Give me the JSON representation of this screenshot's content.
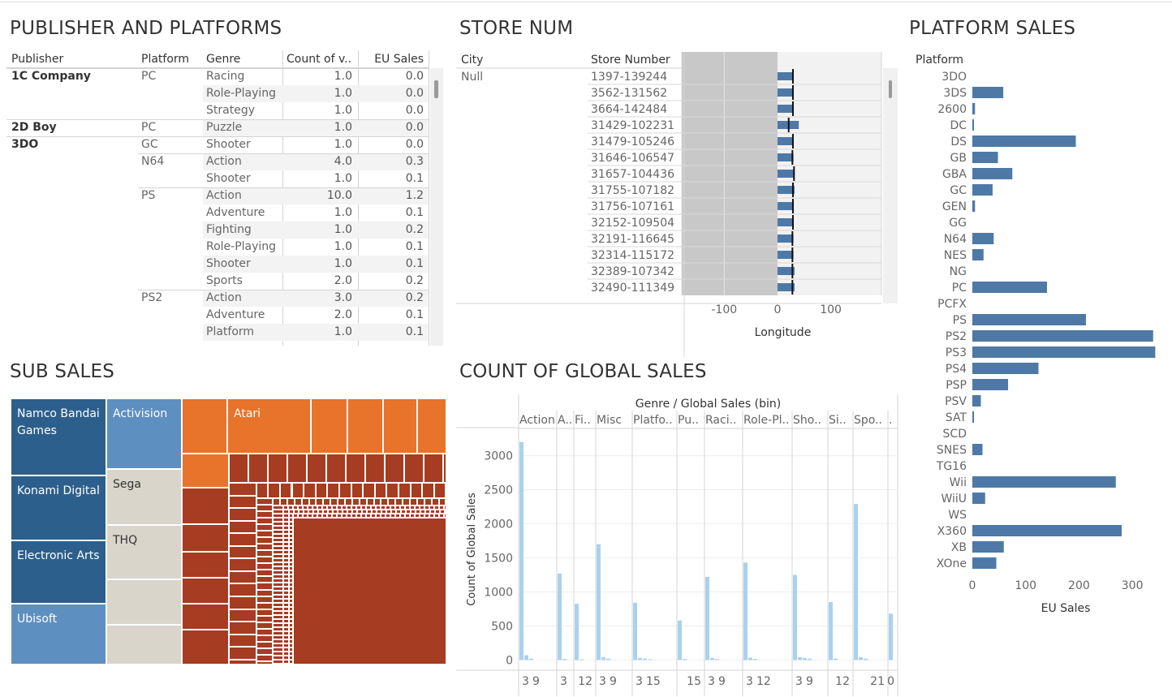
{
  "panels": {
    "publisher": {
      "title": "PUBLISHER AND PLATFORMS",
      "headers": [
        "Publisher",
        "Platform",
        "Genre",
        "Count of v..",
        "EU Sales"
      ],
      "rows": [
        {
          "pub": "1C Company",
          "plat": "PC",
          "genre": "Racing",
          "count": "1.0",
          "eu": "0.0"
        },
        {
          "pub": "",
          "plat": "",
          "genre": "Role-Playing",
          "count": "1.0",
          "eu": "0.0"
        },
        {
          "pub": "",
          "plat": "",
          "genre": "Strategy",
          "count": "1.0",
          "eu": "0.0"
        },
        {
          "pub": "2D Boy",
          "plat": "PC",
          "genre": "Puzzle",
          "count": "1.0",
          "eu": "0.0"
        },
        {
          "pub": "3DO",
          "plat": "GC",
          "genre": "Shooter",
          "count": "1.0",
          "eu": "0.0"
        },
        {
          "pub": "",
          "plat": "N64",
          "genre": "Action",
          "count": "4.0",
          "eu": "0.3"
        },
        {
          "pub": "",
          "plat": "",
          "genre": "Shooter",
          "count": "1.0",
          "eu": "0.1"
        },
        {
          "pub": "",
          "plat": "PS",
          "genre": "Action",
          "count": "10.0",
          "eu": "1.2"
        },
        {
          "pub": "",
          "plat": "",
          "genre": "Adventure",
          "count": "1.0",
          "eu": "0.1"
        },
        {
          "pub": "",
          "plat": "",
          "genre": "Fighting",
          "count": "1.0",
          "eu": "0.2"
        },
        {
          "pub": "",
          "plat": "",
          "genre": "Role-Playing",
          "count": "1.0",
          "eu": "0.1"
        },
        {
          "pub": "",
          "plat": "",
          "genre": "Shooter",
          "count": "1.0",
          "eu": "0.1"
        },
        {
          "pub": "",
          "plat": "",
          "genre": "Sports",
          "count": "2.0",
          "eu": "0.2"
        },
        {
          "pub": "",
          "plat": "PS2",
          "genre": "Action",
          "count": "3.0",
          "eu": "0.2"
        },
        {
          "pub": "",
          "plat": "",
          "genre": "Adventure",
          "count": "2.0",
          "eu": "0.1"
        },
        {
          "pub": "",
          "plat": "",
          "genre": "Platform",
          "count": "1.0",
          "eu": "0.1"
        }
      ]
    },
    "store": {
      "title": "STORE NUM"
    },
    "platform": {
      "title": "PLATFORM SALES"
    },
    "sub": {
      "title": "SUB SALES"
    },
    "global": {
      "title": "COUNT OF GLOBAL SALES"
    }
  },
  "chart_data": [
    {
      "type": "bar",
      "title": "STORE NUM",
      "row_headers": [
        "City",
        "Store Number"
      ],
      "city": "Null",
      "categories": [
        "1397-139244",
        "3562-131562",
        "3664-142484",
        "31429-102231",
        "31479-105246",
        "31646-106547",
        "31657-104436",
        "31755-107182",
        "31756-107161",
        "32152-109504",
        "32191-116645",
        "32314-115172",
        "32389-107342",
        "32490-111349"
      ],
      "values": [
        30,
        30,
        30,
        40,
        30,
        30,
        30,
        32,
        30,
        30,
        30,
        30,
        32,
        32
      ],
      "reference_values": [
        29,
        29,
        29,
        21,
        29,
        28,
        31,
        29,
        29,
        29,
        28,
        28,
        28,
        28
      ],
      "xlabel": "Longitude",
      "xticks": [
        -100,
        0,
        100
      ],
      "xlim": [
        -175,
        195
      ],
      "band": [
        -180,
        0
      ]
    },
    {
      "type": "bar",
      "title": "PLATFORM SALES",
      "row_header": "Platform",
      "categories": [
        "3DO",
        "3DS",
        "2600",
        "DC",
        "DS",
        "GB",
        "GBA",
        "GC",
        "GEN",
        "GG",
        "N64",
        "NES",
        "NG",
        "PC",
        "PCFX",
        "PS",
        "PS2",
        "PS3",
        "PS4",
        "PSP",
        "PSV",
        "SAT",
        "SCD",
        "SNES",
        "TG16",
        "Wii",
        "WiiU",
        "WS",
        "X360",
        "XB",
        "XOne"
      ],
      "values": [
        0,
        58,
        5,
        1.7,
        194,
        48,
        75,
        38,
        5,
        0,
        40,
        21,
        0,
        140,
        0,
        213,
        339,
        343,
        124,
        67,
        16,
        0.5,
        0,
        19,
        0,
        269,
        24,
        0,
        280,
        59,
        45
      ],
      "xlabel": "EU Sales",
      "xticks": [
        0,
        100,
        200,
        300
      ],
      "xlim": [
        0,
        350
      ],
      "color": "#4e79a7"
    },
    {
      "type": "treemap",
      "title": "SUB SALES",
      "labeled_blocks": [
        {
          "label": "Namco Bandai Games",
          "color": "#2c5f8c"
        },
        {
          "label": "Konami Digital",
          "color": "#2c5f8c"
        },
        {
          "label": "Electronic Arts",
          "color": "#2c5f8c"
        },
        {
          "label": "Ubisoft",
          "color": "#5e8fc1"
        },
        {
          "label": "Activision",
          "color": "#5e8fc1"
        },
        {
          "label": "Sega",
          "color": "#d9d5cb"
        },
        {
          "label": "THQ",
          "color": "#d9d5cb"
        },
        {
          "label": "Atari",
          "color": "#e8732a"
        }
      ],
      "colors": {
        "dark_blue": "#2c5f8c",
        "light_blue": "#5e8fc1",
        "beige": "#d9d5cb",
        "orange": "#e8732a",
        "red": "#a63c21"
      }
    },
    {
      "type": "bar",
      "title": "COUNT OF GLOBAL SALES",
      "header": "Genre  /  Global Sales (bin)",
      "genres": [
        "Action",
        "A..",
        "Fi..",
        "Misc",
        "Platfo..",
        "Pu..",
        "Raci..",
        "Role-Pl..",
        "Sho..",
        "Si..",
        "Spo..",
        "."
      ],
      "series_values": [
        [
          3200,
          70,
          20
        ],
        [
          1270,
          15
        ],
        [
          825,
          10
        ],
        [
          1700,
          40,
          20
        ],
        [
          840,
          30,
          20,
          10
        ],
        [
          580,
          15
        ],
        [
          1220,
          30,
          15
        ],
        [
          1430,
          35,
          15
        ],
        [
          1250,
          40,
          30,
          20
        ],
        [
          850,
          20
        ],
        [
          2290,
          40,
          20
        ],
        [
          680
        ]
      ],
      "bin_labels": [
        [
          "3",
          "9"
        ],
        [
          "3"
        ],
        [
          "12"
        ],
        [
          "3",
          "9"
        ],
        [
          "3",
          "15"
        ],
        [
          "15"
        ],
        [
          "3",
          "9"
        ],
        [
          "3",
          "12"
        ],
        [
          "3",
          "9"
        ],
        [
          "12"
        ],
        [
          "21"
        ],
        [
          "0"
        ]
      ],
      "ylabel": "Count of Global Sales",
      "yticks": [
        0,
        500,
        1000,
        1500,
        2000,
        2500,
        3000
      ],
      "ylim": [
        -150,
        3400
      ],
      "color": "#a9d2ee"
    }
  ]
}
